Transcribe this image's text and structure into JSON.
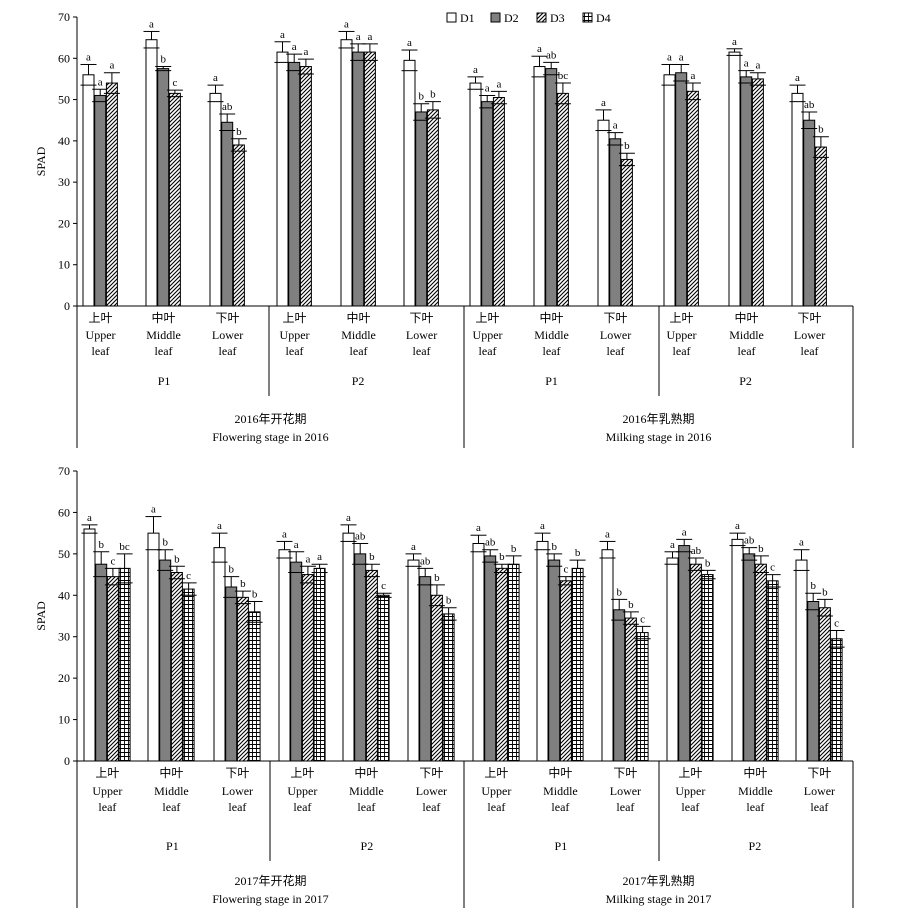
{
  "legend": {
    "items": [
      {
        "label": "D1",
        "pattern": "white"
      },
      {
        "label": "D2",
        "pattern": "gray"
      },
      {
        "label": "D3",
        "pattern": "hatch"
      },
      {
        "label": "D4",
        "pattern": "grid"
      }
    ]
  },
  "chart_data": [
    {
      "type": "bar",
      "ylabel": "SPAD",
      "ylim": [
        0,
        70
      ],
      "yticks": [
        0,
        10,
        20,
        30,
        40,
        50,
        60,
        70
      ],
      "series_names": [
        "D1",
        "D2",
        "D3"
      ],
      "category_labels": [
        {
          "cn": "上叶",
          "en1": "Upper",
          "en2": "leaf"
        },
        {
          "cn": "中叶",
          "en1": "Middle",
          "en2": "leaf"
        },
        {
          "cn": "下叶",
          "en1": "Lower",
          "en2": "leaf"
        }
      ],
      "stages": [
        {
          "cn": "2016年开花期",
          "en": "Flowering stage in 2016",
          "groups": [
            {
              "name": "P1",
              "categories": [
                {
                  "values": [
                    56.0,
                    51.0,
                    54.0
                  ],
                  "errors": [
                    2.5,
                    1.5,
                    2.5
                  ],
                  "letters": [
                    "a",
                    "a",
                    "a"
                  ]
                },
                {
                  "values": [
                    64.5,
                    57.5,
                    51.5
                  ],
                  "errors": [
                    2.0,
                    0.5,
                    0.8
                  ],
                  "letters": [
                    "a",
                    "b",
                    "c"
                  ]
                },
                {
                  "values": [
                    51.5,
                    44.5,
                    39.0
                  ],
                  "errors": [
                    2.0,
                    2.0,
                    1.5
                  ],
                  "letters": [
                    "a",
                    "ab",
                    "b"
                  ]
                }
              ]
            },
            {
              "name": "P2",
              "categories": [
                {
                  "values": [
                    61.5,
                    59.0,
                    58.0
                  ],
                  "errors": [
                    2.5,
                    2.0,
                    1.8
                  ],
                  "letters": [
                    "a",
                    "a",
                    "a"
                  ]
                },
                {
                  "values": [
                    64.5,
                    61.5,
                    61.5
                  ],
                  "errors": [
                    2.0,
                    2.0,
                    2.0
                  ],
                  "letters": [
                    "a",
                    "a",
                    "a"
                  ]
                },
                {
                  "values": [
                    59.5,
                    47.0,
                    47.5
                  ],
                  "errors": [
                    2.5,
                    2.0,
                    2.0
                  ],
                  "letters": [
                    "a",
                    "b",
                    "b"
                  ]
                }
              ]
            }
          ]
        },
        {
          "cn": "2016年乳熟期",
          "en": "Milking stage in 2016",
          "groups": [
            {
              "name": "P1",
              "categories": [
                {
                  "values": [
                    54.0,
                    49.5,
                    50.5
                  ],
                  "errors": [
                    1.5,
                    1.5,
                    1.5
                  ],
                  "letters": [
                    "a",
                    "a",
                    "a"
                  ]
                },
                {
                  "values": [
                    58.0,
                    57.5,
                    51.5
                  ],
                  "errors": [
                    2.5,
                    1.5,
                    2.5
                  ],
                  "letters": [
                    "a",
                    "ab",
                    "bc"
                  ]
                },
                {
                  "values": [
                    45.0,
                    40.5,
                    35.5
                  ],
                  "errors": [
                    2.5,
                    1.5,
                    1.5
                  ],
                  "letters": [
                    "a",
                    "a",
                    "b"
                  ]
                }
              ]
            },
            {
              "name": "P2",
              "categories": [
                {
                  "values": [
                    56.0,
                    56.5,
                    52.0
                  ],
                  "errors": [
                    2.5,
                    2.0,
                    2.0
                  ],
                  "letters": [
                    "a",
                    "a",
                    "a"
                  ]
                },
                {
                  "values": [
                    61.5,
                    55.5,
                    55.0
                  ],
                  "errors": [
                    0.8,
                    1.5,
                    1.5
                  ],
                  "letters": [
                    "a",
                    "a",
                    "a"
                  ]
                },
                {
                  "values": [
                    51.5,
                    45.0,
                    38.5
                  ],
                  "errors": [
                    2.0,
                    2.0,
                    2.5
                  ],
                  "letters": [
                    "a",
                    "ab",
                    "b"
                  ]
                }
              ]
            }
          ]
        }
      ]
    },
    {
      "type": "bar",
      "ylabel": "SPAD",
      "ylim": [
        0,
        70
      ],
      "yticks": [
        0,
        10,
        20,
        30,
        40,
        50,
        60,
        70
      ],
      "series_names": [
        "D1",
        "D2",
        "D3",
        "D4"
      ],
      "category_labels": [
        {
          "cn": "上叶",
          "en1": "Upper",
          "en2": "leaf"
        },
        {
          "cn": "中叶",
          "en1": "Middle",
          "en2": "leaf"
        },
        {
          "cn": "下叶",
          "en1": "Lower",
          "en2": "leaf"
        }
      ],
      "stages": [
        {
          "cn": "2017年开花期",
          "en": "Flowering stage in 2017",
          "groups": [
            {
              "name": "P1",
              "categories": [
                {
                  "values": [
                    56.0,
                    47.5,
                    44.5,
                    46.5
                  ],
                  "errors": [
                    1.0,
                    3.0,
                    2.0,
                    3.5
                  ],
                  "letters": [
                    "a",
                    "b",
                    "c",
                    "bc"
                  ]
                },
                {
                  "values": [
                    55.0,
                    48.5,
                    45.5,
                    41.5
                  ],
                  "errors": [
                    4.0,
                    2.5,
                    1.5,
                    1.5
                  ],
                  "letters": [
                    "a",
                    "b",
                    "b",
                    "c"
                  ]
                },
                {
                  "values": [
                    51.5,
                    42.0,
                    39.5,
                    36.0
                  ],
                  "errors": [
                    3.5,
                    2.5,
                    1.5,
                    2.5
                  ],
                  "letters": [
                    "a",
                    "b",
                    "b",
                    "b"
                  ]
                }
              ]
            },
            {
              "name": "P2",
              "categories": [
                {
                  "values": [
                    51.0,
                    48.0,
                    45.0,
                    46.5
                  ],
                  "errors": [
                    2.0,
                    2.5,
                    2.0,
                    1.0
                  ],
                  "letters": [
                    "a",
                    "a",
                    "a",
                    "a"
                  ]
                },
                {
                  "values": [
                    55.0,
                    50.0,
                    46.0,
                    40.0
                  ],
                  "errors": [
                    2.0,
                    2.5,
                    1.5,
                    0.5
                  ],
                  "letters": [
                    "a",
                    "ab",
                    "b",
                    "c"
                  ]
                },
                {
                  "values": [
                    48.5,
                    44.5,
                    40.0,
                    35.5
                  ],
                  "errors": [
                    1.5,
                    2.0,
                    2.5,
                    1.5
                  ],
                  "letters": [
                    "a",
                    "ab",
                    "b",
                    "b"
                  ]
                }
              ]
            }
          ]
        },
        {
          "cn": "2017年乳熟期",
          "en": "Milking stage in 2017",
          "groups": [
            {
              "name": "P1",
              "categories": [
                {
                  "values": [
                    52.5,
                    49.5,
                    46.5,
                    47.5
                  ],
                  "errors": [
                    2.0,
                    1.5,
                    1.0,
                    2.0
                  ],
                  "letters": [
                    "a",
                    "ab",
                    "b",
                    "b"
                  ]
                },
                {
                  "values": [
                    53.0,
                    48.5,
                    43.5,
                    46.5
                  ],
                  "errors": [
                    2.0,
                    1.5,
                    1.0,
                    2.0
                  ],
                  "letters": [
                    "a",
                    "b",
                    "c",
                    "b"
                  ]
                },
                {
                  "values": [
                    51.0,
                    36.5,
                    34.5,
                    31.0
                  ],
                  "errors": [
                    2.0,
                    2.5,
                    1.5,
                    1.5
                  ],
                  "letters": [
                    "a",
                    "b",
                    "b",
                    "c"
                  ]
                }
              ]
            },
            {
              "name": "P2",
              "categories": [
                {
                  "values": [
                    49.0,
                    52.0,
                    47.5,
                    45.0
                  ],
                  "errors": [
                    1.5,
                    1.5,
                    1.5,
                    1.0
                  ],
                  "letters": [
                    "a",
                    "a",
                    "ab",
                    "b"
                  ]
                },
                {
                  "values": [
                    53.5,
                    50.0,
                    47.5,
                    43.5
                  ],
                  "errors": [
                    1.5,
                    1.5,
                    2.0,
                    1.5
                  ],
                  "letters": [
                    "a",
                    "ab",
                    "b",
                    "c"
                  ]
                },
                {
                  "values": [
                    48.5,
                    38.5,
                    37.0,
                    29.5
                  ],
                  "errors": [
                    2.5,
                    2.0,
                    2.0,
                    2.0
                  ],
                  "letters": [
                    "a",
                    "b",
                    "b",
                    "c"
                  ]
                }
              ]
            }
          ]
        }
      ]
    }
  ]
}
